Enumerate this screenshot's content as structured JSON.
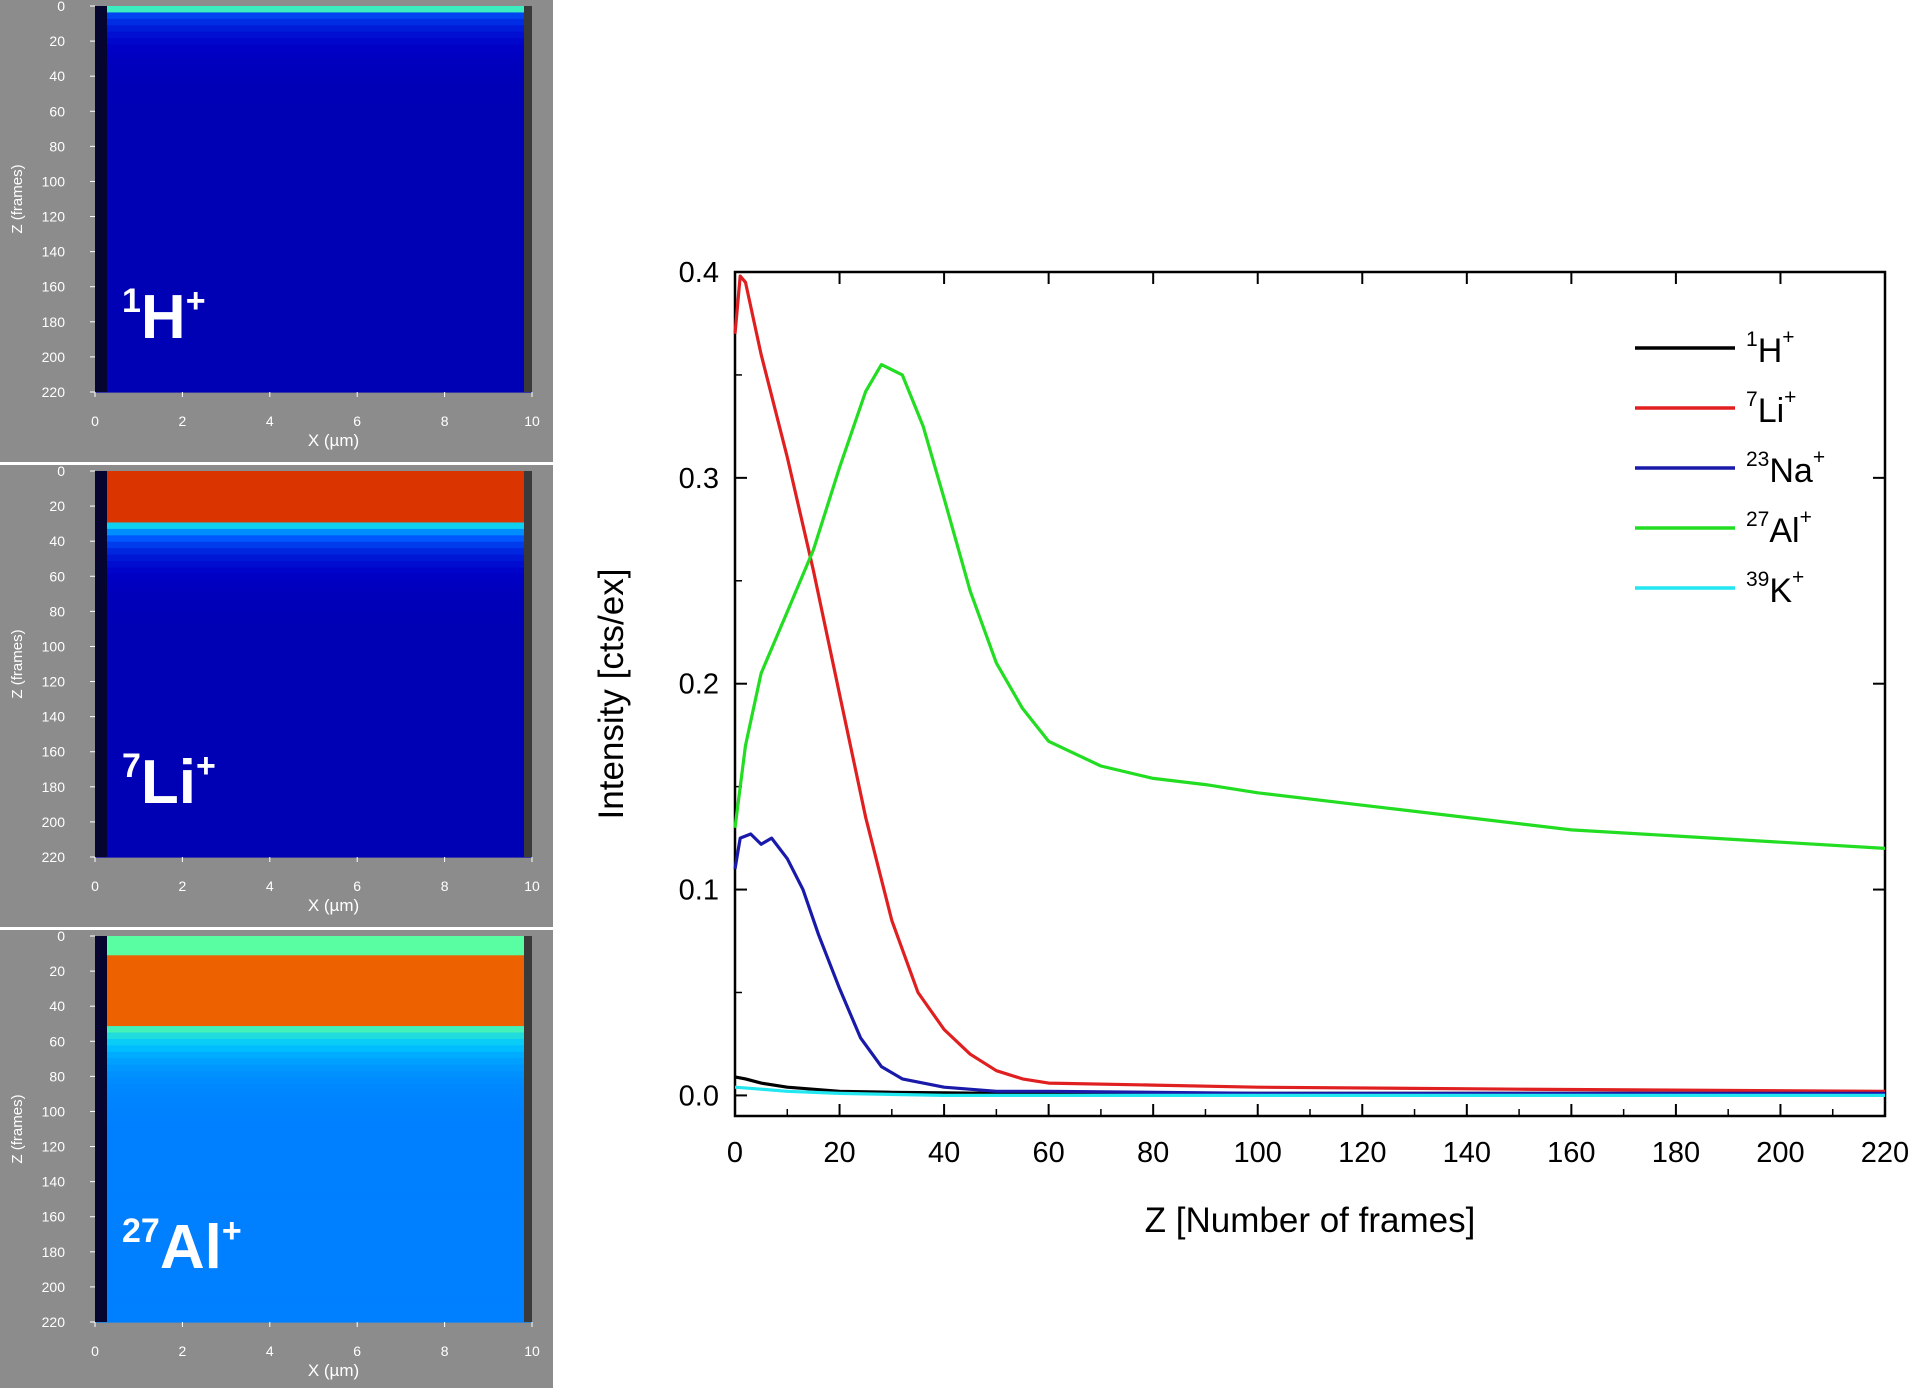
{
  "panels": [
    {
      "species": {
        "mass": "1",
        "symbol": "H",
        "charge": "+"
      },
      "y_ticks": [
        "0",
        "20",
        "40",
        "60",
        "80",
        "100",
        "120",
        "140",
        "160",
        "180",
        "200",
        "220"
      ],
      "x_ticks": [
        "0",
        "2",
        "4",
        "6",
        "8",
        "10"
      ],
      "ylabel": "Z (frames)",
      "xlabel": "X (µm)",
      "intensity_profile": {
        "top_band": [
          0,
          2
        ],
        "peak_level": 0.55,
        "background_level": 0.08
      }
    },
    {
      "species": {
        "mass": "7",
        "symbol": "Li",
        "charge": "+"
      },
      "y_ticks": [
        "0",
        "20",
        "40",
        "60",
        "80",
        "100",
        "120",
        "140",
        "160",
        "180",
        "200",
        "220"
      ],
      "x_ticks": [
        "0",
        "2",
        "4",
        "6",
        "8",
        "10"
      ],
      "ylabel": "Z (frames)",
      "xlabel": "X (µm)",
      "intensity_profile": {
        "top_band": [
          0,
          30
        ],
        "peak_level": 0.95,
        "background_level": 0.08
      }
    },
    {
      "species": {
        "mass": "27",
        "symbol": "Al",
        "charge": "+"
      },
      "y_ticks": [
        "0",
        "20",
        "40",
        "60",
        "80",
        "100",
        "120",
        "140",
        "160",
        "180",
        "200",
        "220"
      ],
      "x_ticks": [
        "0",
        "2",
        "4",
        "6",
        "8",
        "10"
      ],
      "ylabel": "Z (frames)",
      "xlabel": "X (µm)",
      "intensity_profile": {
        "top_band": [
          10,
          50
        ],
        "peak_level": 0.9,
        "background_level": 0.35
      }
    }
  ],
  "chart_data": {
    "type": "line",
    "xlabel": "Z [Number of frames]",
    "ylabel": "Intensity [cts/ex]",
    "xlim": [
      0,
      220
    ],
    "ylim": [
      -0.01,
      0.4
    ],
    "x_ticks": [
      0,
      20,
      40,
      60,
      80,
      100,
      120,
      140,
      160,
      180,
      200,
      220
    ],
    "y_ticks": [
      0.0,
      0.1,
      0.2,
      0.3,
      0.4
    ],
    "y_tick_labels": [
      "0.0",
      "0.1",
      "0.2",
      "0.3",
      "0.4"
    ],
    "legend_position": "top-right",
    "series": [
      {
        "mass": "1",
        "symbol": "H",
        "charge": "+",
        "color": "#000000",
        "points": [
          [
            0,
            0.009
          ],
          [
            2,
            0.008
          ],
          [
            5,
            0.006
          ],
          [
            10,
            0.004
          ],
          [
            20,
            0.002
          ],
          [
            30,
            0.0015
          ],
          [
            50,
            0.001
          ],
          [
            100,
            0.001
          ],
          [
            150,
            0.001
          ],
          [
            220,
            0.001
          ]
        ]
      },
      {
        "mass": "7",
        "symbol": "Li",
        "charge": "+",
        "color": "#e02020",
        "points": [
          [
            0,
            0.37
          ],
          [
            1,
            0.398
          ],
          [
            2,
            0.395
          ],
          [
            5,
            0.36
          ],
          [
            10,
            0.31
          ],
          [
            15,
            0.255
          ],
          [
            20,
            0.195
          ],
          [
            25,
            0.135
          ],
          [
            30,
            0.085
          ],
          [
            35,
            0.05
          ],
          [
            40,
            0.032
          ],
          [
            45,
            0.02
          ],
          [
            50,
            0.012
          ],
          [
            55,
            0.008
          ],
          [
            60,
            0.006
          ],
          [
            80,
            0.005
          ],
          [
            100,
            0.004
          ],
          [
            150,
            0.003
          ],
          [
            220,
            0.002
          ]
        ]
      },
      {
        "mass": "23",
        "symbol": "Na",
        "charge": "+",
        "color": "#1a1aaa",
        "points": [
          [
            0,
            0.11
          ],
          [
            1,
            0.125
          ],
          [
            3,
            0.127
          ],
          [
            5,
            0.122
          ],
          [
            7,
            0.125
          ],
          [
            10,
            0.115
          ],
          [
            13,
            0.1
          ],
          [
            16,
            0.078
          ],
          [
            20,
            0.052
          ],
          [
            24,
            0.028
          ],
          [
            28,
            0.014
          ],
          [
            32,
            0.008
          ],
          [
            40,
            0.004
          ],
          [
            50,
            0.002
          ],
          [
            60,
            0.002
          ],
          [
            100,
            0.001
          ],
          [
            220,
            0.001
          ]
        ]
      },
      {
        "mass": "27",
        "symbol": "Al",
        "charge": "+",
        "color": "#22dd22",
        "points": [
          [
            0,
            0.13
          ],
          [
            2,
            0.17
          ],
          [
            5,
            0.205
          ],
          [
            10,
            0.235
          ],
          [
            15,
            0.265
          ],
          [
            20,
            0.305
          ],
          [
            25,
            0.342
          ],
          [
            28,
            0.355
          ],
          [
            32,
            0.35
          ],
          [
            36,
            0.325
          ],
          [
            40,
            0.29
          ],
          [
            45,
            0.245
          ],
          [
            50,
            0.21
          ],
          [
            55,
            0.188
          ],
          [
            60,
            0.172
          ],
          [
            70,
            0.16
          ],
          [
            80,
            0.154
          ],
          [
            90,
            0.151
          ],
          [
            100,
            0.147
          ],
          [
            120,
            0.141
          ],
          [
            140,
            0.135
          ],
          [
            160,
            0.129
          ],
          [
            180,
            0.126
          ],
          [
            200,
            0.123
          ],
          [
            220,
            0.12
          ]
        ]
      },
      {
        "mass": "39",
        "symbol": "K",
        "charge": "+",
        "color": "#22e6f0",
        "points": [
          [
            0,
            0.004
          ],
          [
            5,
            0.003
          ],
          [
            10,
            0.002
          ],
          [
            20,
            0.001
          ],
          [
            40,
            0.0
          ],
          [
            100,
            0.0
          ],
          [
            220,
            0.0
          ]
        ]
      }
    ]
  }
}
